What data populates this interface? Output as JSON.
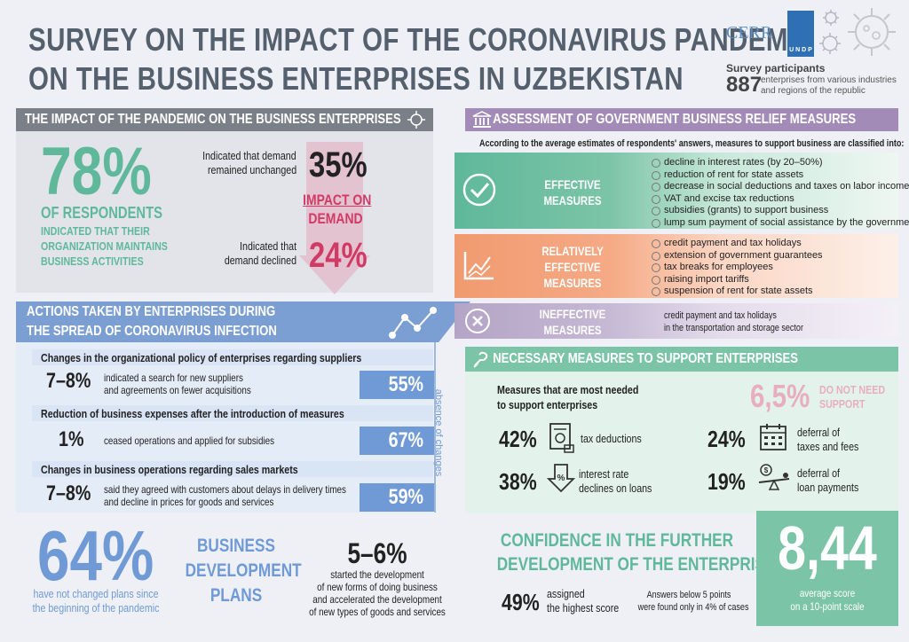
{
  "header": {
    "title_line1": "SURVEY ON THE IMPACT OF THE CORONAVIRUS PANDEMIC",
    "title_line2": "ON THE BUSINESS ENTERPRISES IN UZBEKISTAN",
    "cerr_logo": "CERR",
    "undp_logo": "U N D P",
    "participants_title": "Survey participants",
    "participants_count": "887",
    "participants_desc_line1": "enterprises from various industries",
    "participants_desc_line2": "and regions of the republic"
  },
  "impact": {
    "title": "THE IMPACT OF THE PANDEMIC ON THE BUSINESS ENTERPRISES",
    "percent": "78%",
    "respondents": "OF RESPONDENTS",
    "desc_line1": "INDICATED THAT THEIR",
    "desc_line2": "ORGANIZATION MAINTAINS",
    "desc_line3": "BUSINESS ACTIVITIES",
    "unchanged_line1": "Indicated that demand",
    "unchanged_line2": "remained unchanged",
    "unchanged_pct": "35%",
    "arrow_line1": "IMPACT ON",
    "arrow_line2": "DEMAND",
    "declined_line1": "Indicated that",
    "declined_line2": "demand declined",
    "declined_pct": "24%"
  },
  "actions": {
    "title_line1": "ACTIONS TAKEN BY ENTERPRISES DURING",
    "title_line2": "THE SPREAD OF CORONAVIRUS INFECTION",
    "side_label": "absence of changes",
    "groups": [
      {
        "header": "Changes in the organizational policy of enterprises regarding suppliers",
        "num": "7–8%",
        "text_line1": "indicated a search for new suppliers",
        "text_line2": "and agreements on fewer acquisitions",
        "pct": "55%"
      },
      {
        "header": "Reduction of business expenses after the introduction of measures",
        "num": "1%",
        "text_line1": "ceased operations and applied for subsidies",
        "text_line2": "",
        "pct": "67%"
      },
      {
        "header": "Changes in business operations regarding sales markets",
        "num": "7–8%",
        "text_line1": "said they agreed with customers about delays in delivery times",
        "text_line2": "and decline in prices for goods and services",
        "pct": "59%"
      }
    ]
  },
  "plans": {
    "pct": "64%",
    "pct_desc_line1": "have not changed plans since",
    "pct_desc_line2": "the beginning of the pandemic",
    "title_line1": "BUSINESS",
    "title_line2": "DEVELOPMENT",
    "title_line3": "PLANS",
    "range": "5–6%",
    "range_desc_line1": "started the development",
    "range_desc_line2": "of new forms of doing business",
    "range_desc_line3": "and accelerated the development",
    "range_desc_line4": "of new types of goods and services"
  },
  "assessment": {
    "title": "ASSESSMENT OF GOVERNMENT BUSINESS RELIEF MEASURES",
    "intro": "According to the average estimates of respondents' answers, measures to support business are classified into:",
    "effective": {
      "label_line1": "EFFECTIVE",
      "label_line2": "MEASURES",
      "items": [
        "decline in interest rates (by 20–50%)",
        "reduction of rent for state assets",
        "decrease in social deductions and taxes on labor incomes",
        "VAT and excise tax reductions",
        "subsidies (grants) to support business",
        "lump sum payment of social assistance by the government"
      ]
    },
    "relative": {
      "label_line1": "RELATIVELY",
      "label_line2": "EFFECTIVE",
      "label_line3": "MEASURES",
      "items": [
        "credit payment and tax holidays",
        "extension of government guarantees",
        "tax breaks for employees",
        "raising import tariffs",
        "suspension of rent for state assets"
      ]
    },
    "ineffective": {
      "label_line1": "INEFFECTIVE",
      "label_line2": "MEASURES",
      "text_line1": "credit payment and tax holidays",
      "text_line2": "in the transportation and storage sector"
    }
  },
  "necessary": {
    "title": "NECESSARY MEASURES TO SUPPORT ENTERPRISES",
    "subtitle_line1": "Measures that are most needed",
    "subtitle_line2": "to support enterprises",
    "dont_need_pct": "6,5%",
    "dont_need_line1": "DO NOT NEED",
    "dont_need_line2": "SUPPORT",
    "items": [
      {
        "pct": "42%",
        "label_line1": "tax deductions",
        "label_line2": ""
      },
      {
        "pct": "24%",
        "label_line1": "deferral of",
        "label_line2": "taxes and fees"
      },
      {
        "pct": "38%",
        "label_line1": "interest rate",
        "label_line2": "declines on loans"
      },
      {
        "pct": "19%",
        "label_line1": "deferral of",
        "label_line2": "loan payments"
      }
    ]
  },
  "confidence": {
    "title_line1": "CONFIDENCE IN THE FURTHER",
    "title_line2": "DEVELOPMENT OF THE ENTERPRISE",
    "pct": "49%",
    "pct_line1": "assigned",
    "pct_line2": "the highest score",
    "note_line1": "Answers below 5 points",
    "note_line2": "were found only in 4% of cases",
    "score": "8,44",
    "score_line1": "average score",
    "score_line2": "on a 10-point scale"
  },
  "colors": {
    "teal": "#5fb89a",
    "pink": "#d23a66",
    "blue": "#6f9ad6",
    "purple": "#a28bb6",
    "orange": "#f4a27a",
    "gray_bar": "#7b7f87",
    "green_bar": "#7cc4a8"
  }
}
